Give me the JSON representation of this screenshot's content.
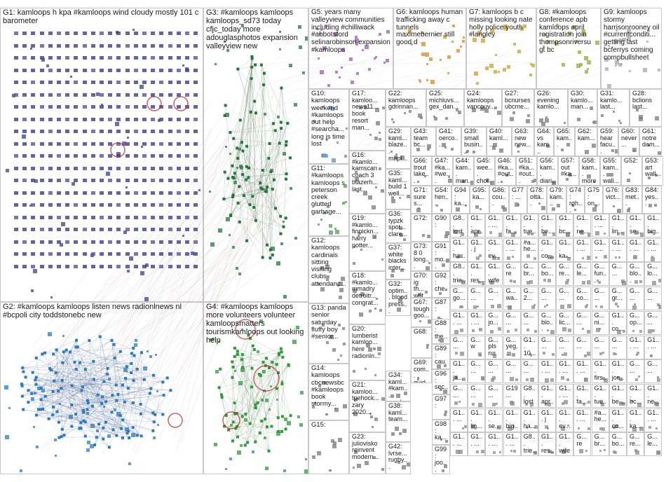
{
  "groups": [
    {
      "id": "G1",
      "label": "G1: kamloops h kpa #kamloops wind cloudy mostly 101 c barometer",
      "color": "#3a3f8f"
    },
    {
      "id": "G2",
      "label": "G2: #kamloops kamloops listen news radionlnews nl #bcpoli city toddstonebc new",
      "color": "#2a7bbf"
    },
    {
      "id": "G3",
      "label": "G3: #kamloops kamloops kamloops_sd73 today cfjc_today more adouglasphotos expansion valleyview new",
      "color": "#1f7a3a"
    },
    {
      "id": "G4",
      "label": "G4: #kamloops kamloops more volunteers volunteer kamloopsmatters tourismkamloops out looking help",
      "color": "#2e9a3a"
    },
    {
      "id": "G5",
      "label": "G5: years many valleyview communities including #chilliwack #abbotsford selinarobinson expansion #kamloops",
      "color": "#9a5bb5"
    },
    {
      "id": "G6",
      "label": "G6: kamloops human trafficking away c tunnels maximebernier still good d",
      "color": "#d98b1f"
    },
    {
      "id": "G7",
      "label": "G7: kamloops b c missing looking nate holly police youth #langley",
      "color": "#c9a227"
    },
    {
      "id": "G8",
      "label": "G8: #kamloops conference apb kamloops april registration join thompsonriversu gt bc",
      "color": "#8fae3a"
    },
    {
      "id": "G9",
      "label": "G9: kamloops stormy harrisonrooney oil #currentconditi... getting last bcferrys coming compbullsheet",
      "color": "#a8a8a8"
    },
    {
      "id": "G10",
      "label": "G10: kamloops weekend #kamloops out help #searcha... long js time lost",
      "color": "#5b8fbf"
    },
    {
      "id": "G11",
      "label": "G11: #kamloops kamloops s peterson creek glutted garbage...",
      "color": "#4f9a5a"
    },
    {
      "id": "G12",
      "label": "G12: kamloops cardinals sitting visiting clubs attendanc...",
      "color": "#7a7a7a"
    },
    {
      "id": "G13",
      "label": "G13: panda senior saturday fluffy boy #senior...",
      "color": "#7a7a7a"
    },
    {
      "id": "G14",
      "label": "G14: kamloops cbcnewsbc #kamloops book stormy...",
      "color": "#7a7a7a"
    },
    {
      "id": "G15",
      "label": "G15:",
      "color": "#7a7a7a"
    },
    {
      "id": "G16",
      "label": "G16: #kamlo... kamscan coach 3 blazerh... last...",
      "color": "#7a7a7a"
    },
    {
      "id": "G17",
      "label": "G17: kamloo... news11... book resort man...",
      "color": "#7a7a7a"
    },
    {
      "id": "G18",
      "label": "G18: #kamlo... mmadry detroitr... congrat...",
      "color": "#7a7a7a"
    },
    {
      "id": "G19",
      "label": "G19: #kamlo... finnickn... harry potter...",
      "color": "#7a7a7a"
    },
    {
      "id": "G20",
      "label": "G20: lumberist kamloo... here radionln...",
      "color": "#7a7a7a"
    },
    {
      "id": "G21",
      "label": "G21: kamloo... tpehock... zary 2020...",
      "color": "#7a7a7a"
    },
    {
      "id": "G22",
      "label": "G22: kamloops gdrinnan...",
      "color": "#7a7a7a"
    },
    {
      "id": "G23",
      "label": "G23: juliovisko reinvent modern...",
      "color": "#7a7a7a"
    },
    {
      "id": "G24",
      "label": "G24: kamloops vancouv...",
      "color": "#7a7a7a"
    },
    {
      "id": "G25",
      "label": "G25: michluvs... gex_dan...",
      "color": "#7a7a7a"
    },
    {
      "id": "G26",
      "label": "G26: evening kamlo...",
      "color": "#7a7a7a"
    },
    {
      "id": "G27",
      "label": "G27: bcnurses ubcme...",
      "color": "#7a7a7a"
    },
    {
      "id": "G28",
      "label": "G28: bclions last...",
      "color": "#7a7a7a"
    },
    {
      "id": "G29",
      "label": "G29: kaml... blaze... mapl...",
      "color": "#7a7a7a"
    },
    {
      "id": "G30",
      "label": "G30: kamlo... man...",
      "color": "#7a7a7a"
    },
    {
      "id": "G31",
      "label": "G31: kamlo... last...",
      "color": "#7a7a7a"
    },
    {
      "id": "G32",
      "label": "G32: optim... blood press...",
      "color": "#7a7a7a"
    },
    {
      "id": "G34",
      "label": "G34: kaml... #kam... week...",
      "color": "#7a7a7a"
    },
    {
      "id": "G35",
      "label": "G35: kaml... build 1 well...",
      "color": "#7a7a7a"
    },
    {
      "id": "G36",
      "label": "G36: typzk spot... clare...",
      "color": "#7a7a7a"
    },
    {
      "id": "G37",
      "label": "G37: white blacks inter...",
      "color": "#7a7a7a"
    },
    {
      "id": "G38",
      "label": "G38: kaml... team...",
      "color": "#7a7a7a"
    },
    {
      "id": "G39",
      "label": "G39: small busin...",
      "color": "#7a7a7a"
    },
    {
      "id": "G40",
      "label": "G40: kaml... ...",
      "color": "#7a7a7a"
    },
    {
      "id": "G41",
      "label": "G41: oerco...",
      "color": "#7a7a7a"
    },
    {
      "id": "G42",
      "label": "G42: lvrse... rugby...",
      "color": "#7a7a7a"
    },
    {
      "id": "G43",
      "label": "G43: team bc...",
      "color": "#7a7a7a"
    },
    {
      "id": "G44",
      "label": "G44: kam... man...",
      "color": "#7a7a7a"
    },
    {
      "id": "G45",
      "label": "G45: wee... choi...",
      "color": "#7a7a7a"
    },
    {
      "id": "G46",
      "label": "G46: #ka... #out...",
      "color": "#7a7a7a"
    },
    {
      "id": "G47",
      "label": "G47: #ka... #we...",
      "color": "#7a7a7a"
    },
    {
      "id": "G48",
      "label": "G48: kam... weh...",
      "color": "#7a7a7a"
    },
    {
      "id": "G49",
      "label": "G49: cust... #ka...",
      "color": "#7a7a7a"
    },
    {
      "id": "G50",
      "label": "G50: never forg...",
      "color": "#7a7a7a"
    },
    {
      "id": "G51",
      "label": "G51: #ka... #out...",
      "color": "#7a7a7a"
    },
    {
      "id": "G52",
      "label": "G52: ",
      "color": "#7a7a7a"
    },
    {
      "id": "G53",
      "label": "G53: art wall...",
      "color": "#7a7a7a"
    },
    {
      "id": "G54",
      "label": "G54: hen...",
      "color": "#7a7a7a"
    },
    {
      "id": "G55",
      "label": "G55: kam... wall...",
      "color": "#7a7a7a"
    },
    {
      "id": "G56",
      "label": "G56: kam... diari...",
      "color": "#7a7a7a"
    },
    {
      "id": "G57",
      "label": "G57: out #ka...",
      "color": "#7a7a7a"
    },
    {
      "id": "G58",
      "label": "G58: kam... more",
      "color": "#7a7a7a"
    },
    {
      "id": "G59",
      "label": "G59: hear facu...",
      "color": "#7a7a7a"
    },
    {
      "id": "G60",
      "label": "G60: never...",
      "color": "#7a7a7a"
    },
    {
      "id": "G61",
      "label": "G61: notre dam...",
      "color": "#7a7a7a"
    },
    {
      "id": "G62",
      "label": "G62: kam...",
      "color": "#7a7a7a"
    },
    {
      "id": "G63",
      "label": "G63: new new...",
      "color": "#7a7a7a"
    },
    {
      "id": "G64",
      "label": "G64: vs kam...",
      "color": "#7a7a7a"
    },
    {
      "id": "G65",
      "label": "G65: kam...",
      "color": "#7a7a7a"
    },
    {
      "id": "G66",
      "label": "G66: trout lake...",
      "color": "#7a7a7a"
    },
    {
      "id": "G67",
      "label": "G67: tough goo...",
      "color": "#7a7a7a"
    },
    {
      "id": "G68",
      "label": "G68: ",
      "color": "#7a7a7a"
    },
    {
      "id": "G69",
      "label": "G69: com... guid...",
      "color": "#7a7a7a"
    },
    {
      "id": "G70",
      "label": "G70: ig th... writ...",
      "color": "#7a7a7a"
    },
    {
      "id": "G71",
      "label": "G71: sure s...",
      "color": "#7a7a7a"
    },
    {
      "id": "G72",
      "label": "G72: ",
      "color": "#7a7a7a"
    },
    {
      "id": "G73",
      "label": "G73: 8 0 long...",
      "color": "#7a7a7a"
    },
    {
      "id": "G74",
      "label": "G74: rgh...",
      "color": "#7a7a7a"
    },
    {
      "id": "G75",
      "label": "G75: on...",
      "color": "#7a7a7a"
    },
    {
      "id": "G76",
      "label": "G76: vict...",
      "color": "#7a7a7a"
    },
    {
      "id": "G77",
      "label": "G77: ...",
      "color": "#7a7a7a"
    },
    {
      "id": "G78",
      "label": "G78: otta...",
      "color": "#7a7a7a"
    },
    {
      "id": "G79",
      "label": "G79: kam...",
      "color": "#7a7a7a"
    },
    {
      "id": "G83",
      "label": "G83: met...",
      "color": "#7a7a7a"
    },
    {
      "id": "G84",
      "label": "G84: yes...",
      "color": "#7a7a7a"
    },
    {
      "id": "G86",
      "label": "G86: cou...",
      "color": "#7a7a7a"
    },
    {
      "id": "G87",
      "label": "G87: ",
      "color": "#7a7a7a"
    },
    {
      "id": "G88",
      "label": "G88: the...",
      "color": "#7a7a7a"
    },
    {
      "id": "G89",
      "label": "G89: cau...",
      "color": "#7a7a7a"
    },
    {
      "id": "G90",
      "label": "G90: ",
      "color": "#7a7a7a"
    },
    {
      "id": "G91",
      "label": "G91: mo...",
      "color": "#7a7a7a"
    },
    {
      "id": "G92",
      "label": "G92: che...",
      "color": "#7a7a7a"
    },
    {
      "id": "G94",
      "label": "G94: ka...",
      "color": "#7a7a7a"
    },
    {
      "id": "G95",
      "label": "G95: ka...",
      "color": "#7a7a7a"
    },
    {
      "id": "G96",
      "label": "G96: sec...",
      "color": "#7a7a7a"
    },
    {
      "id": "G97",
      "label": "G97: ",
      "color": "#7a7a7a"
    },
    {
      "id": "G98",
      "label": "G98: ka...",
      "color": "#7a7a7a"
    },
    {
      "id": "G99",
      "label": "G99: joo...",
      "color": "#7a7a7a"
    },
    {
      "id": "G193",
      "label": "G19...",
      "color": "#7a7a7a"
    }
  ],
  "small_cell_labels": [
    "G8... lost cat...",
    "G1... apr...",
    "G1... ...",
    "G1... fa...",
    "G1... tue...",
    "G1... be...",
    "G1... bc...",
    "G1... ne...",
    "G1... ...",
    "G1... lin...",
    "G1... se...",
    "G1... big...",
    "G1... ha...",
    "G1... j",
    "G1... ev...",
    "G1... ...",
    "#a... he...",
    "G1... co...",
    "G1... ka...",
    "G1... ...",
    "G1... ...",
    "G1... ...",
    "G1... ...",
    "G1... ...",
    "G8... trie...",
    "G1... res...",
    "G1... wife",
    "G... re",
    "G... br...",
    "G... bo...",
    "G... re...",
    "G... le...",
    "G... fun...",
    "G... ...",
    "G... blo...",
    "G... lo...",
    "G... go...",
    "G... ...",
    "G... ...",
    "G... wa...",
    "G... 2...",
    "G... ...",
    "G... ...",
    "G... co...",
    "G... ...",
    "G... gr...",
    "G... ...",
    "G... ...",
    "G1... ...",
    "G1... ...",
    "G... jo...",
    "G... ...",
    "G... ...",
    "G... blo...",
    "G... lic...",
    "G... ...",
    "G... ni...",
    "G1... co...",
    "G... op...",
    "G... ...",
    "G... ...",
    "G... w",
    "G... pls n...",
    "G... yeg...",
    "G1... 10...",
    "G... ...",
    "G... ...",
    "G... ...",
    "G... ...",
    "G... ...",
    "G1... ...",
    "G1... ...",
    "G1... ja...",
    "G... ...",
    "G... ...",
    "G... ...",
    "G... ...",
    "G1... ...",
    "G1... ...",
    "G1... ...",
    "G1... firs...",
    "G1... joe...",
    "G... ...",
    "G... ...",
    "G... ...",
    "G... ...",
    "G... ...",
    "G19..."
  ]
}
